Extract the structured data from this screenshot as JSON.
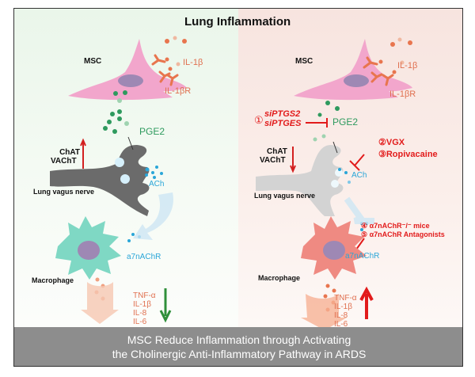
{
  "title": "Lung Inflammation",
  "left": {
    "msc": "MSC",
    "il1b": "IL-1β",
    "il1br": "IL-1βR",
    "pge2": "PGE2",
    "chat": "ChAT",
    "vacht": "VAChT",
    "nerve": "Lung vagus nerve",
    "ach": "ACh",
    "receptor": "a7nAChR",
    "macrophage": "Macrophage",
    "cytokines": [
      "TNF-α",
      "IL-1β",
      "IL-8",
      "IL-6"
    ]
  },
  "right": {
    "msc": "MSC",
    "il1b": "IL-1β",
    "il1br": "IL-1βR",
    "pge2": "PGE2",
    "inhibitor1_num": "①",
    "inhibitor1_a": "siPTGS2",
    "inhibitor1_b": "siPTGES",
    "chat": "ChAT",
    "vacht": "VAChT",
    "inhibitor2": "②VGX",
    "inhibitor3": "③Ropivacaine",
    "ach": "ACh",
    "nerve": "Lung vagus nerve",
    "inhibitor4": "④ α7nAChR⁻/⁻ mice",
    "inhibitor5": "⑤ α7nAChR Antagonists",
    "receptor": "a7nAChR",
    "macrophage": "Macrophage",
    "cytokines": [
      "TNF-α",
      "IL-1β",
      "IL-8",
      "IL-6"
    ]
  },
  "footer": {
    "line1": "MSC Reduce Inflammation through Activating",
    "line2": "the Cholinergic Anti-Inflammatory Pathway in ARDS"
  },
  "colors": {
    "msc_cell": "#f2a6cc",
    "il1b": "#e8754e",
    "pge2": "#2e9a5e",
    "ach": "#2aa6d8",
    "macrophage_left": "#7fd8c4",
    "macrophage_right": "#ef8a82",
    "inhibit_red": "#e21b1b",
    "down_arrow": "#2f8f3a",
    "footer_bg": "#8d8d8d"
  }
}
